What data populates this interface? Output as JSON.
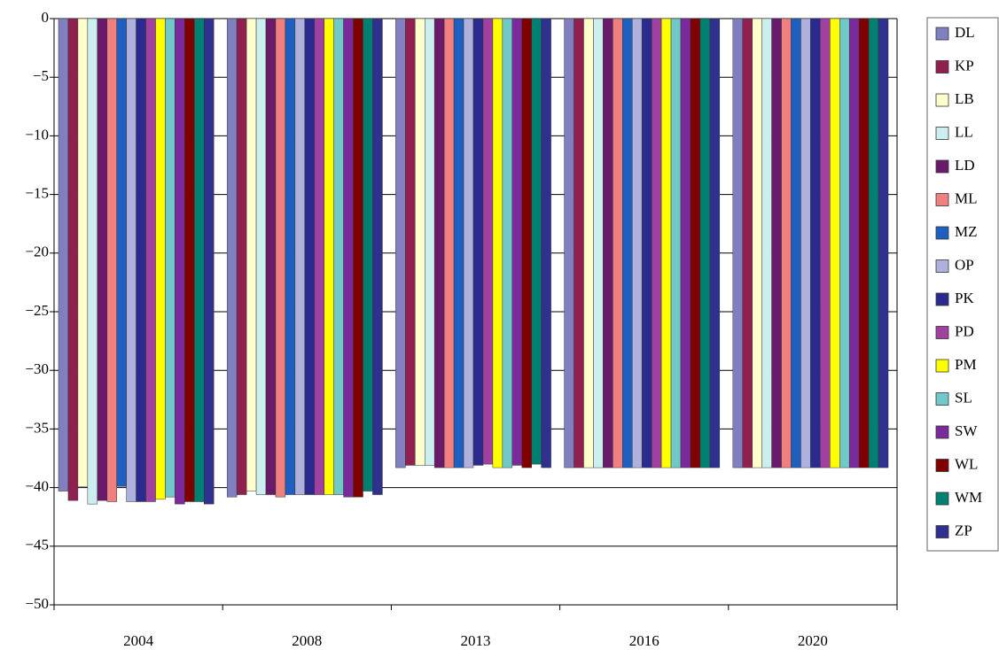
{
  "chart_data": {
    "type": "bar",
    "categories": [
      "2004",
      "2008",
      "2013",
      "2016",
      "2020"
    ],
    "ylim": [
      -50,
      0
    ],
    "yticks": [
      0,
      {
        "value": -5,
        "label": "−5"
      },
      {
        "value": -10,
        "label": "−10"
      },
      {
        "value": -15,
        "label": "−15"
      },
      {
        "value": -20,
        "label": "−20"
      },
      {
        "value": -25,
        "label": "−25"
      },
      {
        "value": -30,
        "label": "−30"
      },
      {
        "value": -35,
        "label": "−35"
      },
      {
        "value": -40,
        "label": "−40"
      },
      {
        "value": -45,
        "label": "−45"
      },
      {
        "value": -50,
        "label": "−50"
      }
    ],
    "grid": true,
    "legend": "right",
    "series": [
      {
        "name": "DL",
        "color": "#8080c0",
        "values": [
          -40.3,
          -40.8,
          -38.3,
          -38.3,
          -38.3
        ]
      },
      {
        "name": "KP",
        "color": "#902050",
        "values": [
          -41.1,
          -40.6,
          -38.1,
          -38.3,
          -38.3
        ]
      },
      {
        "name": "LB",
        "color": "#ffffcc",
        "values": [
          -39.9,
          -40.3,
          -38.1,
          -38.3,
          -38.3
        ]
      },
      {
        "name": "LL",
        "color": "#cceeee",
        "values": [
          -41.4,
          -40.6,
          -38.1,
          -38.3,
          -38.3
        ]
      },
      {
        "name": "LD",
        "color": "#6a1a6a",
        "values": [
          -41.1,
          -40.6,
          -38.3,
          -38.3,
          -38.3
        ]
      },
      {
        "name": "ML",
        "color": "#f08080",
        "values": [
          -41.2,
          -40.8,
          -38.3,
          -38.3,
          -38.3
        ]
      },
      {
        "name": "MZ",
        "color": "#1f5fbf",
        "values": [
          -39.9,
          -40.6,
          -38.3,
          -38.3,
          -38.3
        ]
      },
      {
        "name": "OP",
        "color": "#b0b0dd",
        "values": [
          -41.2,
          -40.6,
          -38.3,
          -38.3,
          -38.3
        ]
      },
      {
        "name": "PK",
        "color": "#2b2b8f",
        "values": [
          -41.2,
          -40.6,
          -38.1,
          -38.3,
          -38.3
        ]
      },
      {
        "name": "PD",
        "color": "#a040a0",
        "values": [
          -41.2,
          -40.6,
          -38.0,
          -38.3,
          -38.3
        ]
      },
      {
        "name": "PM",
        "color": "#ffff00",
        "values": [
          -41.0,
          -40.6,
          -38.3,
          -38.3,
          -38.3
        ]
      },
      {
        "name": "SL",
        "color": "#70c8c8",
        "values": [
          -40.8,
          -40.6,
          -38.3,
          -38.3,
          -38.3
        ]
      },
      {
        "name": "SW",
        "color": "#7a2a9a",
        "values": [
          -41.4,
          -40.8,
          -38.1,
          -38.3,
          -38.3
        ]
      },
      {
        "name": "WL",
        "color": "#800000",
        "values": [
          -41.2,
          -40.8,
          -38.3,
          -38.3,
          -38.3
        ]
      },
      {
        "name": "WM",
        "color": "#008070",
        "values": [
          -41.2,
          -40.3,
          -38.0,
          -38.3,
          -38.3
        ]
      },
      {
        "name": "ZP",
        "color": "#30308f",
        "values": [
          -41.4,
          -40.6,
          -38.3,
          -38.3,
          -38.3
        ]
      }
    ]
  }
}
